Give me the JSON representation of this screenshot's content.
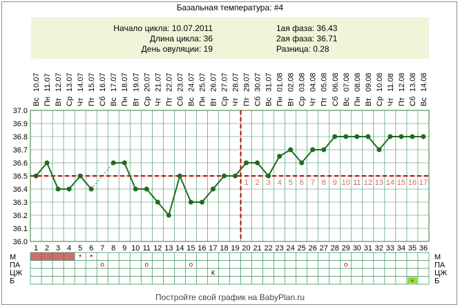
{
  "title": "Базальная температура: #4",
  "info": {
    "cycle_start": "Начало цикла: 10.07.2011",
    "cycle_length": "Длина цикла: 36",
    "ovulation_day": "День овуляции: 19",
    "phase1": "1ая фаза: 36.43",
    "phase2": "2ая фаза: 36.71",
    "difference": "Разница: 0.28"
  },
  "footer": "Постройте свой график на BabyPlan.ru",
  "colors": {
    "line": "#1e6b1e",
    "point": "#1e6b1e",
    "marker": "#c00000",
    "grid": "#2e8b57",
    "menses": "#d46a6a",
    "phase_label": "#d46a6a",
    "sex": "#90e040"
  },
  "chart_data": {
    "type": "line",
    "title": "Базальная температура: #4",
    "ylim": [
      36.0,
      37.0
    ],
    "yticks": [
      "37.0",
      "36.9",
      "36.8",
      "36.7",
      "36.6",
      "36.5",
      "36.4",
      "36.3",
      "36.2",
      "36.1",
      "36.0"
    ],
    "days": [
      "1",
      "2",
      "3",
      "4",
      "5",
      "6",
      "7",
      "8",
      "9",
      "10",
      "11",
      "12",
      "13",
      "14",
      "15",
      "16",
      "17",
      "18",
      "19",
      "20",
      "21",
      "22",
      "23",
      "24",
      "25",
      "26",
      "27",
      "28",
      "29",
      "30",
      "31",
      "32",
      "33",
      "34",
      "35",
      "36"
    ],
    "dates": [
      "10.07",
      "11.07",
      "12.07",
      "13.07",
      "14.07",
      "15.07",
      "16.07",
      "17.07",
      "18.07",
      "19.07",
      "20.07",
      "21.07",
      "22.07",
      "23.07",
      "24.07",
      "25.07",
      "26.07",
      "27.07",
      "28.07",
      "29.07",
      "30.07",
      "31.07",
      "01.08",
      "02.08",
      "03.08",
      "04.08",
      "05.08",
      "06.08",
      "07.08",
      "08.08",
      "09.08",
      "10.08",
      "11.08",
      "12.08",
      "13.08",
      "14.08"
    ],
    "weekdays": [
      "Вс",
      "Пн",
      "Вт",
      "Ср",
      "Чт",
      "Пт",
      "Сб",
      "Вс",
      "Пн",
      "Вт",
      "Ср",
      "Чт",
      "Пт",
      "Сб",
      "Вс",
      "Пн",
      "Вт",
      "Ср",
      "Чт",
      "Пт",
      "Сб",
      "Вс",
      "Пн",
      "Вт",
      "Ср",
      "Чт",
      "Пт",
      "Сб",
      "Вс",
      "Пн",
      "Вт",
      "Ср",
      "Чт",
      "Пт",
      "Сб",
      "Вс"
    ],
    "temperature": [
      36.5,
      36.6,
      36.4,
      36.4,
      36.5,
      36.4,
      null,
      36.6,
      36.6,
      36.4,
      36.4,
      36.3,
      36.2,
      36.5,
      36.3,
      36.3,
      36.4,
      36.5,
      36.5,
      36.6,
      36.6,
      36.5,
      36.65,
      36.7,
      36.6,
      36.7,
      36.7,
      36.8,
      36.8,
      36.8,
      36.8,
      36.7,
      36.8,
      36.8,
      36.8,
      36.8
    ],
    "coverline": 36.5,
    "ovulation_day": 19,
    "phase2_labels": [
      "1",
      "2",
      "3",
      "4",
      "5",
      "6",
      "7",
      "8",
      "9",
      "10",
      "11",
      "12",
      "13",
      "14",
      "15",
      "16",
      "17"
    ],
    "grid": true,
    "rows": {
      "labels_left": [
        "М",
        "ПА",
        "ЦЖ",
        "Б"
      ],
      "labels_right": [
        "М",
        "ПА",
        "ЦЖ",
        "Б"
      ],
      "menses_days": [
        1,
        2,
        3,
        4
      ],
      "spotting_days": [
        5,
        6
      ],
      "spotting_symbol": "*",
      "sex_days": [
        7,
        11,
        15,
        29
      ],
      "sex_symbol": "о",
      "mucus": [
        {
          "day": 17,
          "symbol": "К"
        }
      ],
      "test_days": [
        35
      ],
      "test_symbol": "+"
    }
  }
}
